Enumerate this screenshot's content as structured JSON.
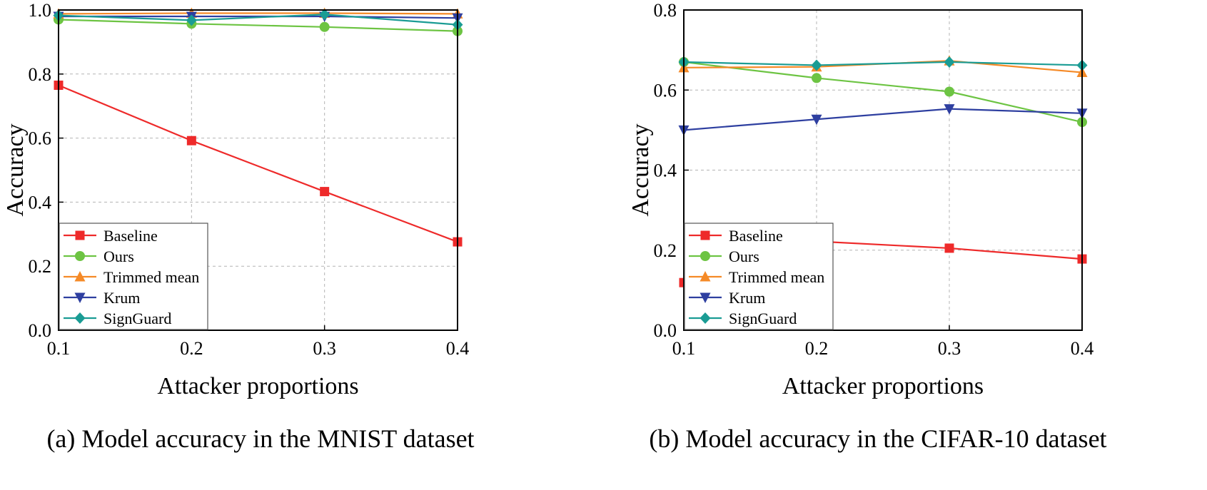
{
  "chart_data": [
    {
      "type": "line",
      "caption": "(a) Model accuracy in the MNIST dataset",
      "xlabel": "Attacker proportions",
      "ylabel": "Accuracy",
      "xlim": [
        0.1,
        0.4
      ],
      "ylim": [
        0.0,
        1.0
      ],
      "x_ticks": [
        "0.1",
        "0.2",
        "0.3",
        "0.4"
      ],
      "y_ticks": [
        "0.0",
        "0.2",
        "0.4",
        "0.6",
        "0.8",
        "1.0"
      ],
      "grid": true,
      "legend_position": "bottom-left",
      "x": [
        0.1,
        0.2,
        0.3,
        0.4
      ],
      "series": [
        {
          "name": "Baseline",
          "color": "#ee2a2a",
          "marker": "square",
          "values": [
            0.765,
            0.592,
            0.433,
            0.276
          ]
        },
        {
          "name": "Ours",
          "color": "#6dc443",
          "marker": "circle",
          "values": [
            0.97,
            0.957,
            0.947,
            0.934
          ]
        },
        {
          "name": "Trimmed mean",
          "color": "#f58a27",
          "marker": "triangle-up",
          "values": [
            0.988,
            0.99,
            0.99,
            0.988
          ]
        },
        {
          "name": "Krum",
          "color": "#2e3fa0",
          "marker": "triangle-down",
          "values": [
            0.98,
            0.98,
            0.98,
            0.975
          ]
        },
        {
          "name": "SignGuard",
          "color": "#1a9c94",
          "marker": "diamond",
          "values": [
            0.983,
            0.968,
            0.986,
            0.954
          ]
        }
      ]
    },
    {
      "type": "line",
      "caption": "(b) Model accuracy in the CIFAR-10 dataset",
      "xlabel": "Attacker proportions",
      "ylabel": "Accuracy",
      "xlim": [
        0.1,
        0.4
      ],
      "ylim": [
        0.0,
        0.8
      ],
      "x_ticks": [
        "0.1",
        "0.2",
        "0.3",
        "0.4"
      ],
      "y_ticks": [
        "0.0",
        "0.2",
        "0.4",
        "0.6",
        "0.8"
      ],
      "grid": true,
      "legend_position": "bottom-left",
      "x": [
        0.1,
        0.2,
        0.3,
        0.4
      ],
      "series": [
        {
          "name": "Baseline",
          "color": "#ee2a2a",
          "marker": "square",
          "values": [
            0.119,
            0.222,
            0.205,
            0.178
          ]
        },
        {
          "name": "Ours",
          "color": "#6dc443",
          "marker": "circle",
          "values": [
            0.67,
            0.63,
            0.596,
            0.52
          ]
        },
        {
          "name": "Trimmed mean",
          "color": "#f58a27",
          "marker": "triangle-up",
          "values": [
            0.656,
            0.658,
            0.673,
            0.644
          ]
        },
        {
          "name": "Krum",
          "color": "#2e3fa0",
          "marker": "triangle-down",
          "values": [
            0.5,
            0.527,
            0.553,
            0.542
          ]
        },
        {
          "name": "SignGuard",
          "color": "#1a9c94",
          "marker": "diamond",
          "values": [
            0.67,
            0.662,
            0.67,
            0.662
          ]
        }
      ]
    }
  ]
}
